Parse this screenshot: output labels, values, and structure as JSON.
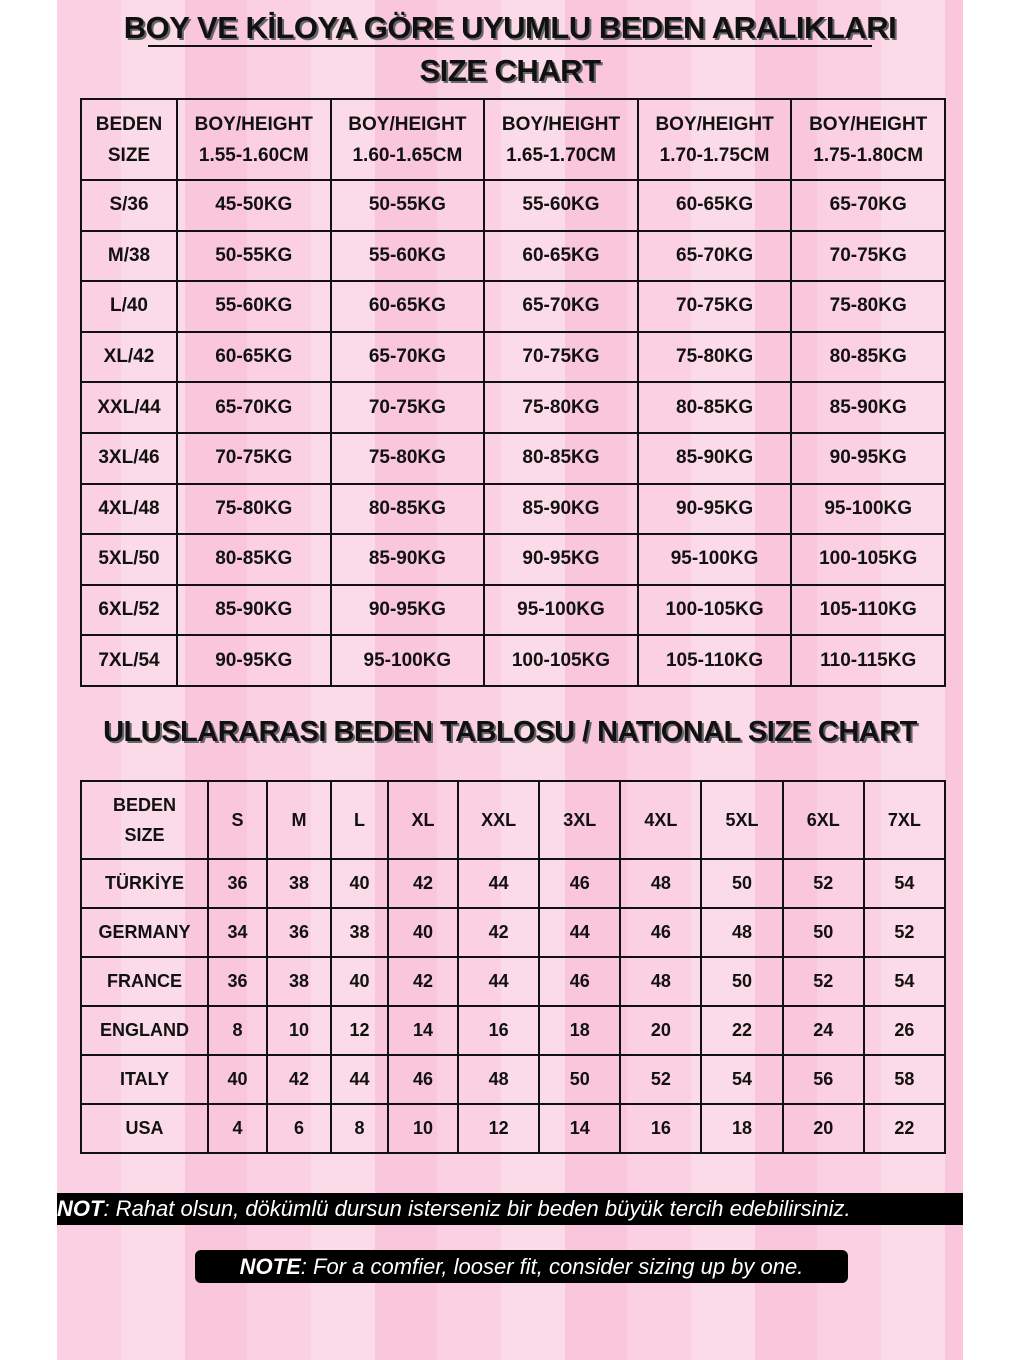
{
  "colors": {
    "background": "#fbd0e2",
    "text": "#111111",
    "note_bg": "#000000",
    "note_text": "#ffffff"
  },
  "title_line1": "BOY VE KİLOYA GÖRE UYUMLU BEDEN ARALIKLARI",
  "title_line2": "SIZE CHART",
  "table1": {
    "header": [
      [
        "BEDEN",
        "SIZE"
      ],
      [
        "BOY/HEIGHT",
        "1.55-1.60CM"
      ],
      [
        "BOY/HEIGHT",
        "1.60-1.65CM"
      ],
      [
        "BOY/HEIGHT",
        "1.65-1.70CM"
      ],
      [
        "BOY/HEIGHT",
        "1.70-1.75CM"
      ],
      [
        "BOY/HEIGHT",
        "1.75-1.80CM"
      ]
    ],
    "rows": [
      [
        "S/36",
        "45-50KG",
        "50-55KG",
        "55-60KG",
        "60-65KG",
        "65-70KG"
      ],
      [
        "M/38",
        "50-55KG",
        "55-60KG",
        "60-65KG",
        "65-70KG",
        "70-75KG"
      ],
      [
        "L/40",
        "55-60KG",
        "60-65KG",
        "65-70KG",
        "70-75KG",
        "75-80KG"
      ],
      [
        "XL/42",
        "60-65KG",
        "65-70KG",
        "70-75KG",
        "75-80KG",
        "80-85KG"
      ],
      [
        "XXL/44",
        "65-70KG",
        "70-75KG",
        "75-80KG",
        "80-85KG",
        "85-90KG"
      ],
      [
        "3XL/46",
        "70-75KG",
        "75-80KG",
        "80-85KG",
        "85-90KG",
        "90-95KG"
      ],
      [
        "4XL/48",
        "75-80KG",
        "80-85KG",
        "85-90KG",
        "90-95KG",
        "95-100KG"
      ],
      [
        "5XL/50",
        "80-85KG",
        "85-90KG",
        "90-95KG",
        "95-100KG",
        "100-105KG"
      ],
      [
        "6XL/52",
        "85-90KG",
        "90-95KG",
        "95-100KG",
        "100-105KG",
        "105-110KG"
      ],
      [
        "7XL/54",
        "90-95KG",
        "95-100KG",
        "100-105KG",
        "105-110KG",
        "110-115KG"
      ]
    ]
  },
  "title_international": "ULUSLARARASI BEDEN TABLOSU / NATIONAL SIZE CHART",
  "table2": {
    "header": [
      [
        "BEDEN",
        "SIZE"
      ],
      [
        "S"
      ],
      [
        "M"
      ],
      [
        "L"
      ],
      [
        "XL"
      ],
      [
        "XXL"
      ],
      [
        "3XL"
      ],
      [
        "4XL"
      ],
      [
        "5XL"
      ],
      [
        "6XL"
      ],
      [
        "7XL"
      ]
    ],
    "rows": [
      [
        "TÜRKİYE",
        "36",
        "38",
        "40",
        "42",
        "44",
        "46",
        "48",
        "50",
        "52",
        "54"
      ],
      [
        "GERMANY",
        "34",
        "36",
        "38",
        "40",
        "42",
        "44",
        "46",
        "48",
        "50",
        "52"
      ],
      [
        "FRANCE",
        "36",
        "38",
        "40",
        "42",
        "44",
        "46",
        "48",
        "50",
        "52",
        "54"
      ],
      [
        "ENGLAND",
        "8",
        "10",
        "12",
        "14",
        "16",
        "18",
        "20",
        "22",
        "24",
        "26"
      ],
      [
        "ITALY",
        "40",
        "42",
        "44",
        "46",
        "48",
        "50",
        "52",
        "54",
        "56",
        "58"
      ],
      [
        "USA",
        "4",
        "6",
        "8",
        "10",
        "12",
        "14",
        "16",
        "18",
        "20",
        "22"
      ]
    ]
  },
  "note_tr": {
    "label": "NOT",
    "text": ": Rahat olsun, dökümlü dursun isterseniz bir beden büyük tercih edebilirsiniz."
  },
  "note_en": {
    "label": "NOTE",
    "text": ": For a comfier, looser fit, consider sizing up by one."
  }
}
